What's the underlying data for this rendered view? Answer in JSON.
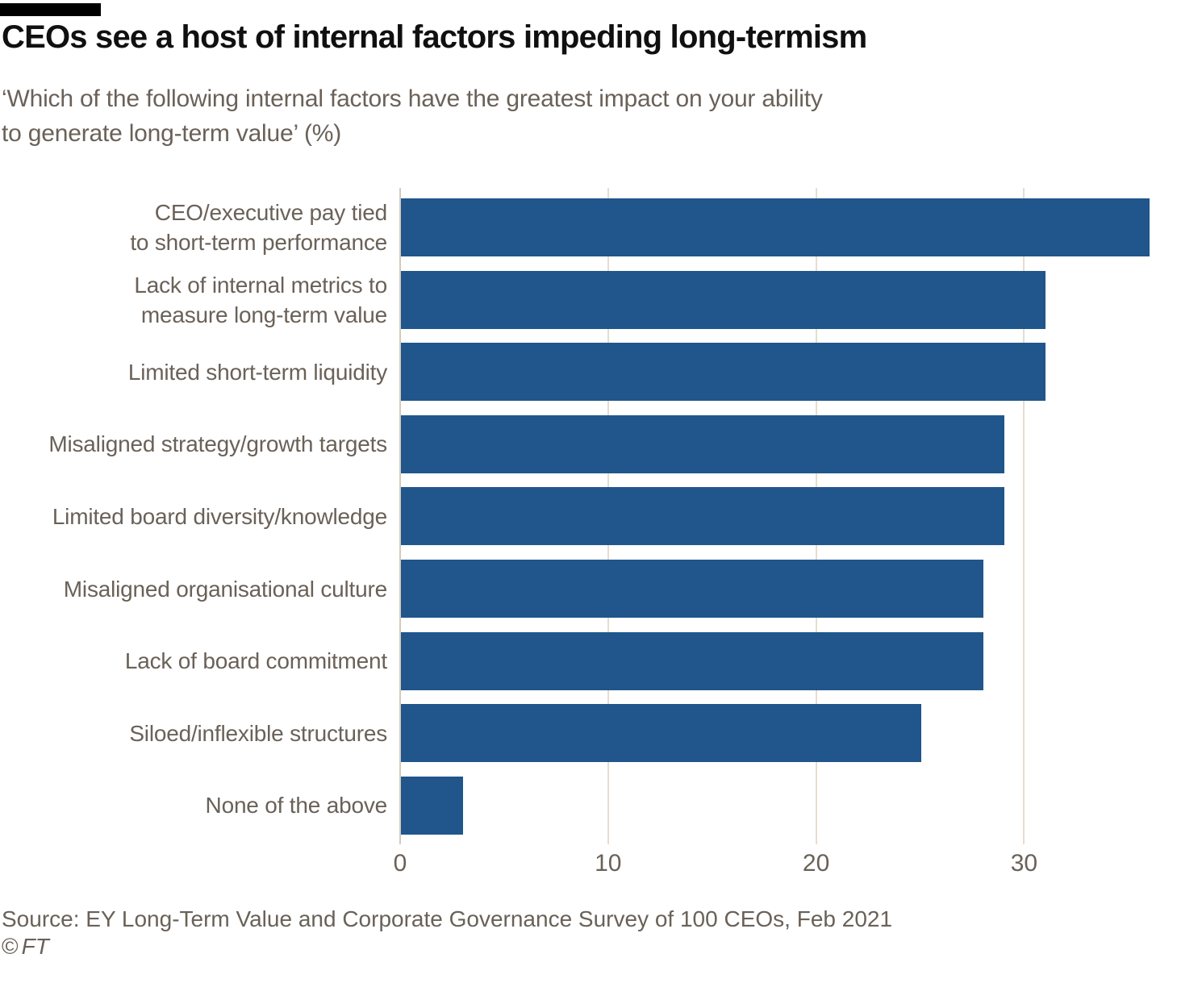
{
  "header": {
    "title": "CEOs see a host of internal factors impeding long-termism",
    "subtitle_lines": [
      "‘Which of the following internal factors have the greatest impact on your ability",
      "to generate long-term value’ (%)"
    ]
  },
  "chart_data": {
    "type": "bar",
    "orientation": "horizontal",
    "title": "CEOs see a host of internal factors impeding long-termism",
    "subtitle": "‘Which of the following internal factors have the greatest impact on your ability to generate long-term value’ (%)",
    "unit": "%",
    "categories": [
      "CEO/executive pay tied to short-term performance",
      "Lack of internal metrics to measure long-term value",
      "Limited short-term liquidity",
      "Misaligned strategy/growth targets",
      "Limited board diversity/knowledge",
      "Misaligned organisational culture",
      "Lack of board commitment",
      "Siloed/inflexible structures",
      "None of the above"
    ],
    "values": [
      36,
      31,
      31,
      29,
      29,
      28,
      28,
      25,
      3
    ],
    "rows": [
      {
        "label_lines": [
          "CEO/executive pay tied",
          "to short-term performance"
        ],
        "value": 36
      },
      {
        "label_lines": [
          "Lack of internal metrics to",
          "measure long-term value"
        ],
        "value": 31
      },
      {
        "label_lines": [
          "Limited short-term liquidity"
        ],
        "value": 31
      },
      {
        "label_lines": [
          "Misaligned strategy/growth targets"
        ],
        "value": 29
      },
      {
        "label_lines": [
          "Limited board diversity/knowledge"
        ],
        "value": 29
      },
      {
        "label_lines": [
          "Misaligned organisational culture"
        ],
        "value": 28
      },
      {
        "label_lines": [
          "Lack of board commitment"
        ],
        "value": 28
      },
      {
        "label_lines": [
          "Siloed/inflexible structures"
        ],
        "value": 25
      },
      {
        "label_lines": [
          "None of the above"
        ],
        "value": 3
      }
    ],
    "x_ticks": [
      0,
      10,
      20,
      30
    ],
    "xlim": [
      0,
      37.4
    ],
    "grid": "vertical",
    "legend": "none"
  },
  "footer": {
    "source": "Source: EY Long-Term Value and Corporate Governance Survey of 100 CEOs, Feb 2021",
    "credit_symbol": "©",
    "credit_name": "FT"
  },
  "colors": {
    "bar": "#20568c",
    "gridline": "#e8dccd",
    "zero_line": "#d3cabe",
    "text": "#6a6158",
    "title": "#101010",
    "top_rule": "#000000"
  }
}
